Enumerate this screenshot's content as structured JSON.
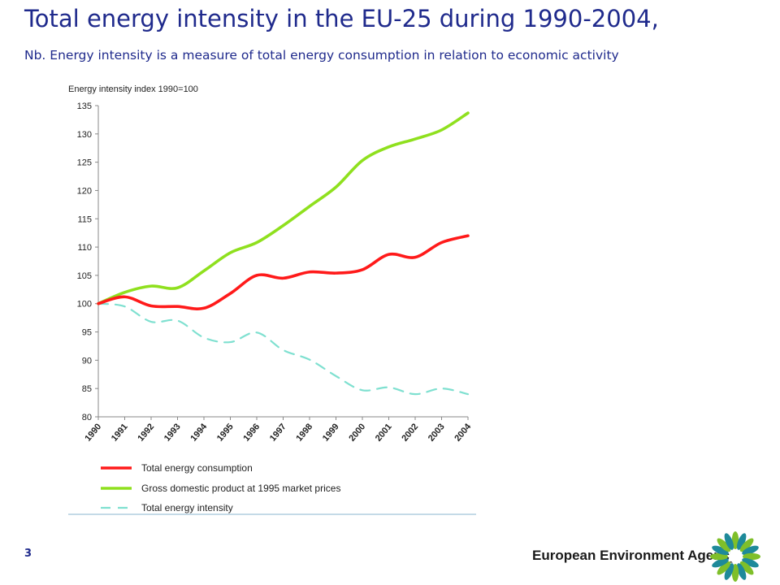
{
  "slide": {
    "title": "Total energy intensity in the EU-25 during 1990-2004,",
    "subtitle": "Nb. Energy intensity is a measure of total energy consumption in relation to economic activity",
    "page_number": "3",
    "footer_org": "European Environment Agency"
  },
  "colors": {
    "title": "#1f2a8c",
    "consumption": "#ff1a1a",
    "gdp": "#8fe01e",
    "intensity": "#7fe0d0",
    "logo_green": "#7fbf2a",
    "logo_teal": "#1e8a9a"
  },
  "chart_data": {
    "type": "line",
    "ylabel": "Energy intensity index 1990=100",
    "ylim": [
      80,
      135
    ],
    "yticks": [
      80,
      85,
      90,
      95,
      100,
      105,
      110,
      115,
      120,
      125,
      130,
      135
    ],
    "x": [
      "1990",
      "1991",
      "1992",
      "1993",
      "1994",
      "1995",
      "1996",
      "1997",
      "1998",
      "1999",
      "2000",
      "2001",
      "2002",
      "2003",
      "2004"
    ],
    "grid": false,
    "legend_position": "bottom",
    "series": [
      {
        "name": "Total energy consumption",
        "key": "consumption",
        "style": "solid",
        "values": [
          100,
          101.2,
          99.6,
          99.5,
          99.2,
          101.8,
          105.0,
          104.5,
          105.6,
          105.4,
          106.0,
          108.7,
          108.2,
          110.8,
          112.0
        ]
      },
      {
        "name": "Gross domestic product at 1995 market prices",
        "key": "gdp",
        "style": "solid",
        "values": [
          100,
          102.0,
          103.1,
          102.8,
          105.8,
          109.0,
          110.8,
          113.8,
          117.2,
          120.6,
          125.3,
          127.7,
          129.1,
          130.7,
          133.7
        ]
      },
      {
        "name": "Total energy intensity",
        "key": "intensity",
        "style": "dashed",
        "values": [
          100,
          99.5,
          96.8,
          97.0,
          94.0,
          93.2,
          94.9,
          91.8,
          90.1,
          87.2,
          84.7,
          85.2,
          84.0,
          85.0,
          84.0
        ]
      }
    ]
  }
}
